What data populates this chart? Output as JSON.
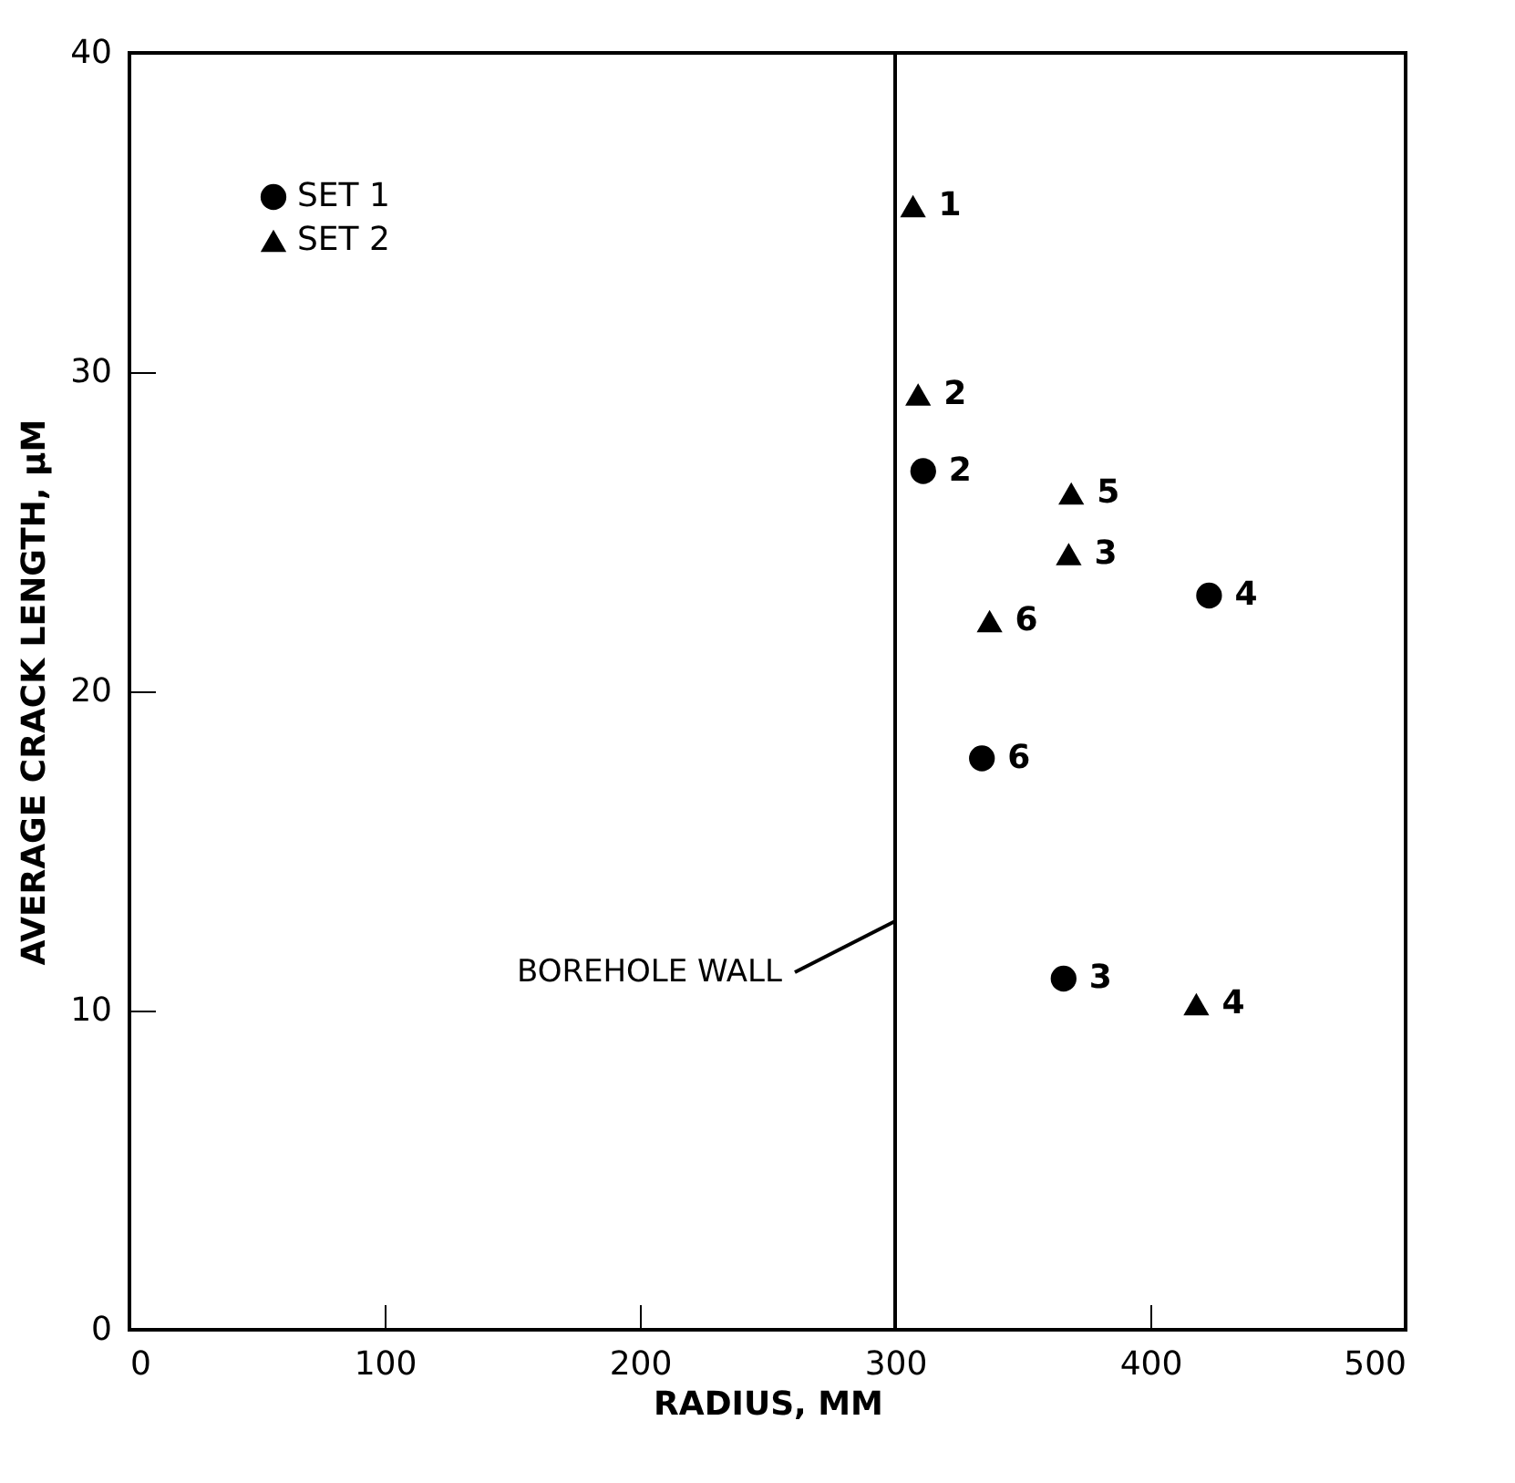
{
  "chart_data": {
    "type": "scatter",
    "xlabel": "RADIUS, MM",
    "ylabel": "AVERAGE CRACK LENGTH, μM",
    "xlim": [
      0,
      500
    ],
    "xticks": [
      0,
      100,
      200,
      300,
      400,
      500
    ],
    "ylim": [
      0,
      40
    ],
    "yticks": [
      0,
      10,
      20,
      30,
      40
    ],
    "grid": false,
    "legend": "top left",
    "series": [
      {
        "name": "SET 1",
        "color": "#000000",
        "marker": "circle",
        "x": [
          311,
          423,
          366,
          334
        ],
        "values": [
          26.9,
          23.0,
          11.0,
          17.9
        ]
      },
      {
        "name": "SET 2",
        "color": "#000000",
        "marker": "triangle",
        "x": [
          307,
          309,
          368,
          418,
          369,
          337
        ],
        "values": [
          35.2,
          29.3,
          24.3,
          10.2,
          26.2,
          22.2
        ]
      }
    ],
    "annotations": [
      {
        "text": "1",
        "x": 307,
        "y": 35.2
      },
      {
        "text": "2",
        "x": 309,
        "y": 29.3
      },
      {
        "text": "2",
        "x": 311,
        "y": 26.9
      },
      {
        "text": "5",
        "x": 369,
        "y": 26.2
      },
      {
        "text": "3",
        "x": 368,
        "y": 24.3
      },
      {
        "text": "4",
        "x": 423,
        "y": 23.0
      },
      {
        "text": "6",
        "x": 337,
        "y": 22.2
      },
      {
        "text": "6",
        "x": 334,
        "y": 17.9
      },
      {
        "text": "3",
        "x": 366,
        "y": 11.0
      },
      {
        "text": "4",
        "x": 418,
        "y": 10.2
      }
    ],
    "ref_lines": [
      {
        "axis": "x",
        "value": 300,
        "label": "BOREHOLE WALL",
        "color": "#000000",
        "line_style": "solid"
      }
    ]
  }
}
